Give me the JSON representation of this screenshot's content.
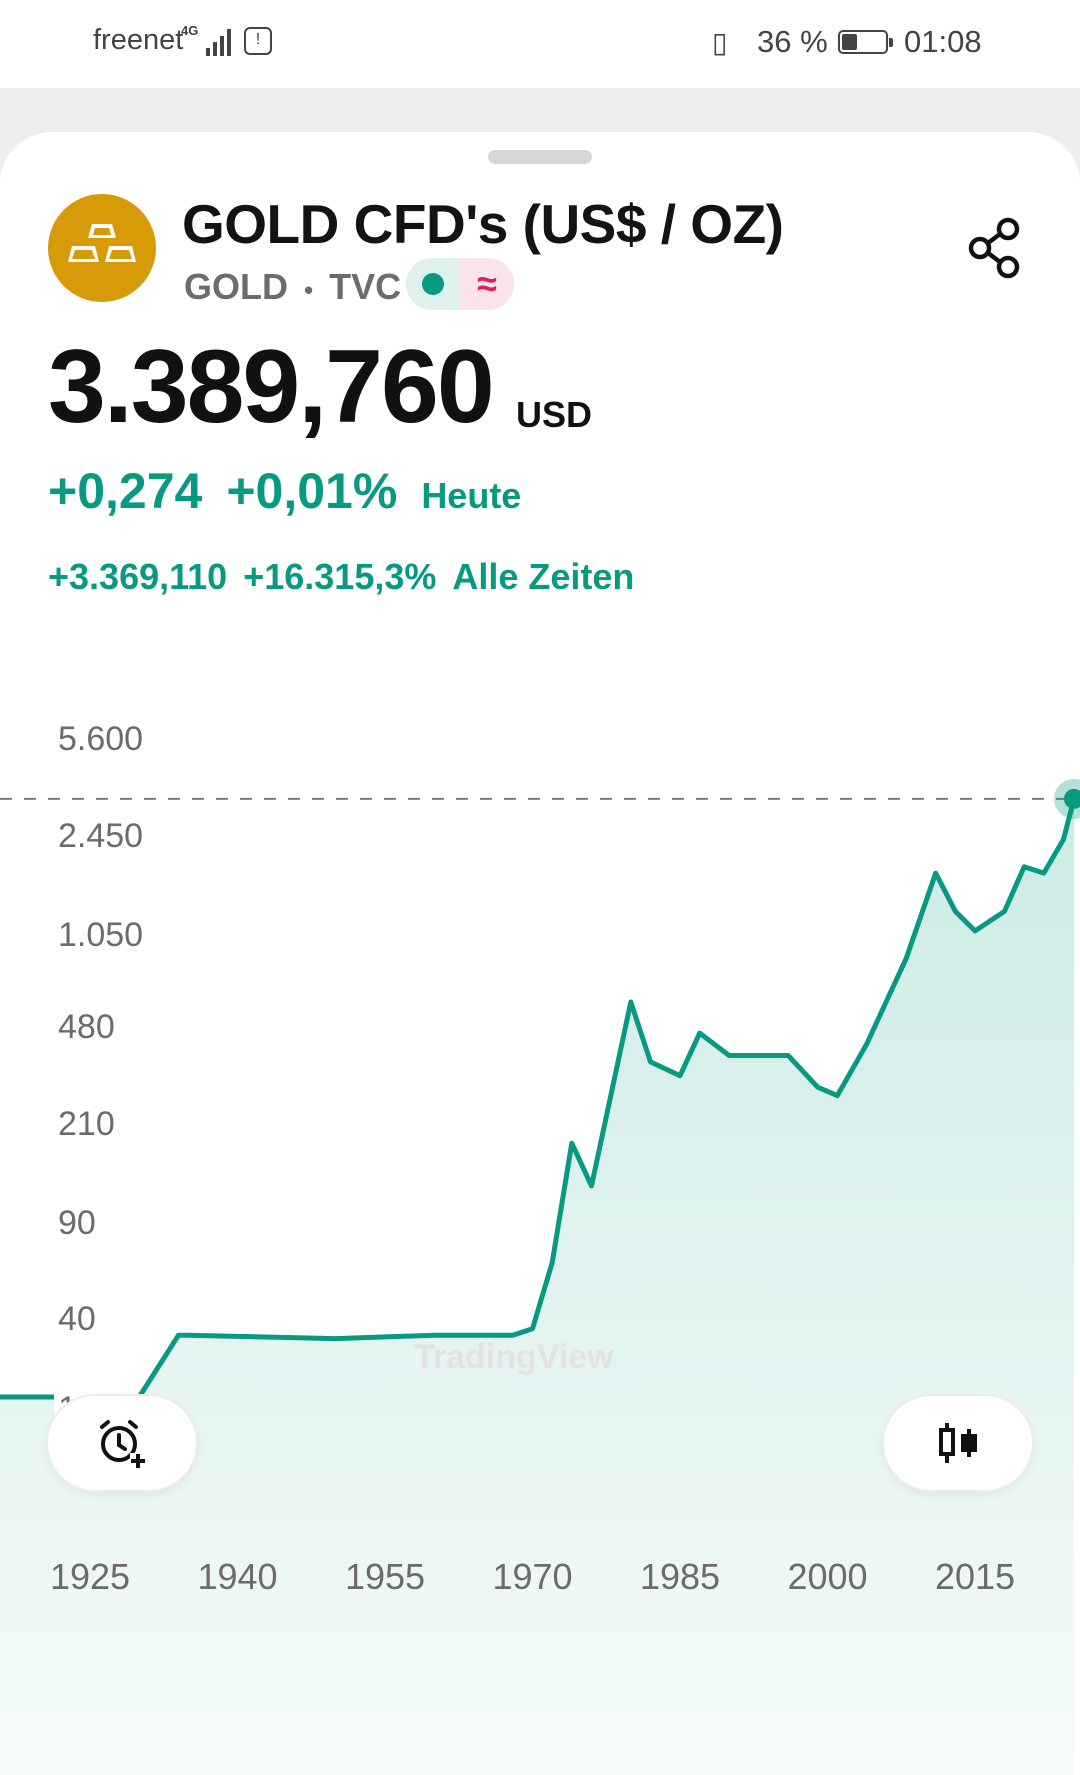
{
  "status_bar": {
    "carrier": "freenet",
    "network": "4G",
    "battery_percent": "36 %",
    "battery_level": 0.36,
    "time": "01:08"
  },
  "header": {
    "title": "GOLD CFD's (US$ / OZ)",
    "symbol": "GOLD",
    "separator": "•",
    "exchange": "TVC",
    "badge_right_glyph": "≈",
    "icons": [
      "gold-bars-logo-icon",
      "market-open-dot-icon",
      "approximate-data-icon",
      "share-icon"
    ]
  },
  "quote": {
    "price": "3.389,760",
    "currency": "USD",
    "change_today": "+0,274",
    "change_today_pct": "+0,01%",
    "today_label": "Heute",
    "change_all": "+3.369,110",
    "change_all_pct": "+16.315,3%",
    "all_label": "Alle Zeiten"
  },
  "chart_data": {
    "type": "area",
    "scale": "log",
    "y_ticks": [
      "5.600",
      "2.450",
      "1.050",
      "480",
      "210",
      "90",
      "40",
      "18,5"
    ],
    "x_ticks": [
      "1925",
      "1940",
      "1955",
      "1970",
      "1985",
      "2000",
      "2015"
    ],
    "last_value": 3389.76,
    "line_color": "#089981",
    "x": [
      1915,
      1924,
      1930,
      1934,
      1935,
      1950,
      1960,
      1968,
      1970,
      1972,
      1974,
      1976,
      1980,
      1982,
      1985,
      1987,
      1990,
      1993,
      1996,
      1999,
      2001,
      2004,
      2008,
      2011,
      2013,
      2015,
      2018,
      2020,
      2022,
      2024,
      2025.4
    ],
    "values": [
      20.67,
      20.67,
      20.67,
      35,
      35,
      34,
      35,
      35,
      37,
      65,
      180,
      125,
      600,
      360,
      320,
      460,
      380,
      380,
      380,
      290,
      270,
      420,
      870,
      1800,
      1300,
      1100,
      1300,
      1900,
      1800,
      2400,
      3389.76
    ]
  },
  "watermark": "TradingView",
  "buttons": {
    "alert": "add-alert-icon",
    "chart_type": "candlestick-icon"
  }
}
